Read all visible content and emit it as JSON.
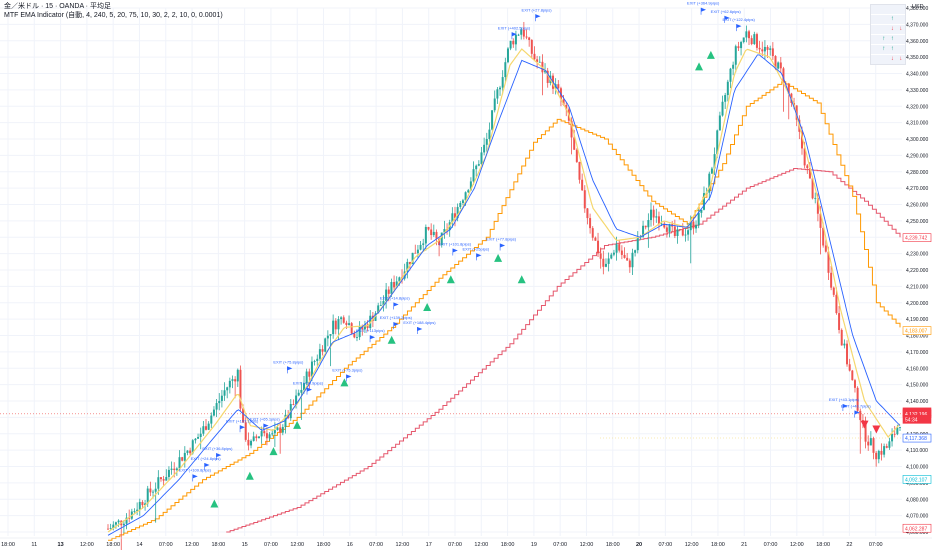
{
  "header": {
    "symbol_line": "金／米ドル · 15 · OANDA · 平均足",
    "indicator_line": "MTF EMA Indicator (自動, 4, 240, 5, 20, 75, 10, 30, 2, 2, 10, 0, 0.0001)"
  },
  "currency": "USD",
  "colors": {
    "bull": "#26a69a",
    "bear": "#ef5350",
    "ema_fast": "#f5d76e",
    "ema_mid": "#2962ff",
    "ema_slow": "#ff9800",
    "ema_htf": "#e5566b",
    "exit_text": "#2962ff",
    "buy": "#26c281",
    "sell": "#f23645",
    "price_tag_red": "#f23645",
    "price_tag_blue": "#2962ff",
    "price_tag_orange": "#ff9800",
    "price_tag_cyan": "#00bcd4"
  },
  "mtf_table": {
    "rows": [
      [
        "",
        "",
        "",
        ""
      ],
      [
        "",
        "",
        "↑",
        ""
      ],
      [
        "",
        "",
        "↓",
        "↓"
      ],
      [
        "",
        "↑",
        "↑",
        ""
      ],
      [
        "",
        "↑",
        "↑",
        ""
      ],
      [
        "",
        "",
        "↓",
        "↓"
      ]
    ]
  },
  "chart_data": {
    "type": "candlestick",
    "y_range": [
      4060,
      4380
    ],
    "y_ticks": [
      4380,
      4370,
      4360,
      4350,
      4340,
      4330,
      4320,
      4310,
      4300,
      4290,
      4280,
      4270,
      4260,
      4250,
      4240,
      4230,
      4220,
      4210,
      4200,
      4190,
      4180,
      4170,
      4160,
      4150,
      4140,
      4130,
      4120,
      4110,
      4100,
      4090,
      4080,
      4070,
      4060
    ],
    "y_tick_labels": [
      "4,380.000",
      "4,370.000",
      "4,360.000",
      "4,350.000",
      "4,340.000",
      "4,330.000",
      "4,320.000",
      "4,310.000",
      "4,300.000",
      "4,290.000",
      "4,280.000",
      "4,270.000",
      "4,260.000",
      "4,250.000",
      "4,240.000",
      "4,230.000",
      "4,220.000",
      "4,210.000",
      "4,200.000",
      "4,190.000",
      "4,180.000",
      "4,170.000",
      "4,160.000",
      "4,150.000",
      "4,140.000",
      "4,130.000",
      "4,120.000",
      "4,110.000",
      "4,100.000",
      "4,090.000",
      "4,080.000",
      "4,070.000",
      "4,060.000"
    ],
    "x_ticks": [
      "18:00",
      "11",
      "13",
      "12:00",
      "18:00",
      "14",
      "07:00",
      "12:00",
      "18:00",
      "15",
      "07:00",
      "12:00",
      "18:00",
      "16",
      "07:00",
      "12:00",
      "17",
      "07:00",
      "12:00",
      "18:00",
      "19",
      "07:00",
      "12:00",
      "18:00",
      "20",
      "07:00",
      "12:00",
      "18:00",
      "21",
      "07:00",
      "12:00",
      "18:00",
      "22",
      "07:00"
    ],
    "x_tick_bold": [
      "13",
      "20"
    ],
    "price_path": [
      [
        0,
        4062
      ],
      [
        3,
        4066
      ],
      [
        6,
        4072
      ],
      [
        9,
        4080
      ],
      [
        12,
        4088
      ],
      [
        15,
        4096
      ],
      [
        18,
        4104
      ],
      [
        21,
        4112
      ],
      [
        24,
        4122
      ],
      [
        27,
        4135
      ],
      [
        30,
        4148
      ],
      [
        33,
        4158
      ],
      [
        34,
        4125
      ],
      [
        36,
        4112
      ],
      [
        39,
        4122
      ],
      [
        42,
        4118
      ],
      [
        45,
        4128
      ],
      [
        48,
        4142
      ],
      [
        51,
        4158
      ],
      [
        54,
        4172
      ],
      [
        57,
        4186
      ],
      [
        60,
        4192
      ],
      [
        63,
        4180
      ],
      [
        66,
        4188
      ],
      [
        69,
        4198
      ],
      [
        72,
        4210
      ],
      [
        75,
        4220
      ],
      [
        78,
        4232
      ],
      [
        81,
        4244
      ],
      [
        84,
        4236
      ],
      [
        87,
        4250
      ],
      [
        90,
        4265
      ],
      [
        93,
        4280
      ],
      [
        96,
        4298
      ],
      [
        99,
        4330
      ],
      [
        102,
        4358
      ],
      [
        105,
        4368
      ],
      [
        108,
        4350
      ],
      [
        111,
        4340
      ],
      [
        114,
        4330
      ],
      [
        117,
        4310
      ],
      [
        120,
        4268
      ],
      [
        123,
        4242
      ],
      [
        126,
        4220
      ],
      [
        129,
        4236
      ],
      [
        132,
        4222
      ],
      [
        135,
        4240
      ],
      [
        138,
        4255
      ],
      [
        141,
        4250
      ],
      [
        144,
        4240
      ],
      [
        147,
        4245
      ],
      [
        150,
        4252
      ],
      [
        153,
        4280
      ],
      [
        156,
        4320
      ],
      [
        159,
        4352
      ],
      [
        162,
        4365
      ],
      [
        165,
        4358
      ],
      [
        168,
        4352
      ],
      [
        171,
        4340
      ],
      [
        174,
        4318
      ],
      [
        177,
        4285
      ],
      [
        180,
        4255
      ],
      [
        183,
        4220
      ],
      [
        186,
        4180
      ],
      [
        189,
        4150
      ],
      [
        192,
        4120
      ],
      [
        195,
        4108
      ],
      [
        198,
        4112
      ],
      [
        201,
        4128
      ]
    ],
    "ema_fast": [
      [
        0,
        4060
      ],
      [
        9,
        4075
      ],
      [
        18,
        4098
      ],
      [
        27,
        4125
      ],
      [
        33,
        4145
      ],
      [
        36,
        4125
      ],
      [
        42,
        4122
      ],
      [
        48,
        4138
      ],
      [
        54,
        4165
      ],
      [
        60,
        4185
      ],
      [
        66,
        4186
      ],
      [
        72,
        4205
      ],
      [
        78,
        4228
      ],
      [
        84,
        4238
      ],
      [
        90,
        4258
      ],
      [
        96,
        4290
      ],
      [
        102,
        4345
      ],
      [
        105,
        4355
      ],
      [
        111,
        4342
      ],
      [
        117,
        4315
      ],
      [
        123,
        4258
      ],
      [
        129,
        4238
      ],
      [
        135,
        4240
      ],
      [
        141,
        4250
      ],
      [
        147,
        4246
      ],
      [
        153,
        4272
      ],
      [
        159,
        4340
      ],
      [
        162,
        4355
      ],
      [
        168,
        4350
      ],
      [
        174,
        4322
      ],
      [
        180,
        4265
      ],
      [
        186,
        4195
      ],
      [
        192,
        4140
      ],
      [
        198,
        4118
      ],
      [
        201,
        4126
      ]
    ],
    "ema_mid": [
      [
        0,
        4058
      ],
      [
        9,
        4070
      ],
      [
        18,
        4092
      ],
      [
        27,
        4118
      ],
      [
        33,
        4135
      ],
      [
        39,
        4122
      ],
      [
        45,
        4128
      ],
      [
        51,
        4150
      ],
      [
        57,
        4176
      ],
      [
        63,
        4182
      ],
      [
        69,
        4195
      ],
      [
        75,
        4215
      ],
      [
        81,
        4235
      ],
      [
        87,
        4245
      ],
      [
        93,
        4270
      ],
      [
        99,
        4310
      ],
      [
        105,
        4348
      ],
      [
        111,
        4342
      ],
      [
        117,
        4320
      ],
      [
        123,
        4275
      ],
      [
        129,
        4245
      ],
      [
        135,
        4240
      ],
      [
        141,
        4248
      ],
      [
        147,
        4246
      ],
      [
        153,
        4265
      ],
      [
        159,
        4330
      ],
      [
        165,
        4352
      ],
      [
        171,
        4340
      ],
      [
        177,
        4300
      ],
      [
        183,
        4240
      ],
      [
        189,
        4180
      ],
      [
        195,
        4140
      ],
      [
        201,
        4125
      ]
    ],
    "ema_slow_step": [
      [
        0,
        4055
      ],
      [
        12,
        4068
      ],
      [
        24,
        4092
      ],
      [
        36,
        4108
      ],
      [
        48,
        4130
      ],
      [
        60,
        4160
      ],
      [
        72,
        4185
      ],
      [
        84,
        4215
      ],
      [
        96,
        4240
      ],
      [
        108,
        4298
      ],
      [
        114,
        4312
      ],
      [
        126,
        4300
      ],
      [
        138,
        4262
      ],
      [
        147,
        4248
      ],
      [
        156,
        4285
      ],
      [
        162,
        4320
      ],
      [
        171,
        4335
      ],
      [
        180,
        4322
      ],
      [
        189,
        4265
      ],
      [
        195,
        4200
      ],
      [
        201,
        4185
      ]
    ],
    "ema_htf_step": [
      [
        30,
        4060
      ],
      [
        48,
        4075
      ],
      [
        66,
        4100
      ],
      [
        84,
        4135
      ],
      [
        102,
        4175
      ],
      [
        114,
        4210
      ],
      [
        126,
        4235
      ],
      [
        138,
        4240
      ],
      [
        150,
        4248
      ],
      [
        162,
        4270
      ],
      [
        174,
        4282
      ],
      [
        183,
        4280
      ],
      [
        192,
        4262
      ],
      [
        201,
        4240
      ]
    ],
    "buy_signals": [
      [
        27,
        4078
      ],
      [
        36,
        4095
      ],
      [
        42,
        4110
      ],
      [
        48,
        4126
      ],
      [
        60,
        4152
      ],
      [
        72,
        4178
      ],
      [
        81,
        4198
      ],
      [
        87,
        4215
      ],
      [
        99,
        4228
      ],
      [
        105,
        4215
      ],
      [
        150,
        4345
      ],
      [
        153,
        4352
      ]
    ],
    "sell_signals": [
      [
        192,
        4125
      ],
      [
        195,
        4122
      ]
    ],
    "exit_labels": [
      {
        "x": 21,
        "y": 4097,
        "text": "EXIT (+109.8pips)"
      },
      {
        "x": 24,
        "y": 4104,
        "text": "EXIT (+24.8pips)"
      },
      {
        "x": 27,
        "y": 4110,
        "text": "EXIT (+36.8pips)"
      },
      {
        "x": 33,
        "y": 4127,
        "text": "EXIT (+157.1pips)"
      },
      {
        "x": 39,
        "y": 4128,
        "text": "EXIT (+65.1pips)"
      },
      {
        "x": 45,
        "y": 4163,
        "text": "EXIT (+75.8pips)"
      },
      {
        "x": 50,
        "y": 4150,
        "text": "EXIT (+99.9pips)"
      },
      {
        "x": 60,
        "y": 4158,
        "text": "EXIT (+75.3pips)"
      },
      {
        "x": 66,
        "y": 4182,
        "text": "EXIT (+113pips)"
      },
      {
        "x": 72,
        "y": 4190,
        "text": "EXIT (+139.2pips)"
      },
      {
        "x": 78,
        "y": 4187,
        "text": "EXIT (+188.4pips)"
      },
      {
        "x": 72,
        "y": 4202,
        "text": "EXIT (+14.8pips)"
      },
      {
        "x": 87,
        "y": 4235,
        "text": "EXIT (+101.8pips)"
      },
      {
        "x": 93,
        "y": 4232,
        "text": "EXIT (+25pips)"
      },
      {
        "x": 99,
        "y": 4238,
        "text": "EXIT (+77.8pips)"
      },
      {
        "x": 108,
        "y": 4378,
        "text": "EXIT (+27.8pips)"
      },
      {
        "x": 102,
        "y": 4367,
        "text": "EXIT (+402.5pips)"
      },
      {
        "x": 150,
        "y": 4382,
        "text": "EXIT (+364.9pips)"
      },
      {
        "x": 156,
        "y": 4377,
        "text": "EXIT (+62.6pips)"
      },
      {
        "x": 159,
        "y": 4372,
        "text": "EXIT (+122.4pips)"
      },
      {
        "x": 186,
        "y": 4140,
        "text": "EXIT (+43.1pips)"
      },
      {
        "x": 189,
        "y": 4136,
        "text": "EXIT (+40.7pips)"
      }
    ],
    "price_tags": [
      {
        "label": "4,239.742",
        "value": 4239.742,
        "style": "red_outline"
      },
      {
        "label": "4,183.007",
        "value": 4183.007,
        "style": "orange_outline"
      },
      {
        "label": "4,133.360",
        "value": 4133.36,
        "style": "red_solid"
      },
      {
        "label": "4,132.196",
        "value": 4132.196,
        "style": "red_solid"
      },
      {
        "label": "54:34",
        "value": 4128.8,
        "style": "red_solid_small"
      },
      {
        "label": "4,117.368",
        "value": 4117.368,
        "style": "blue_outline"
      },
      {
        "label": "4,092.107",
        "value": 4092.107,
        "style": "cyan_outline"
      },
      {
        "label": "4,062.287",
        "value": 4062.287,
        "style": "red_outline"
      }
    ]
  }
}
